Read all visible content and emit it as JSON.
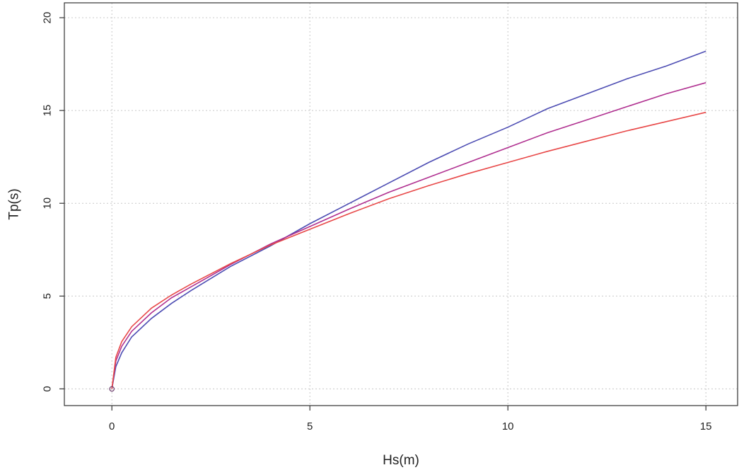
{
  "chart_data": {
    "type": "line",
    "title": "",
    "xlabel": "Hs(m)",
    "ylabel": "Tp(s)",
    "xlim": [
      -1.2,
      15.8
    ],
    "ylim": [
      -0.9,
      20.8
    ],
    "xticks": [
      0,
      5,
      10,
      15
    ],
    "xtick_labels": [
      "0",
      "5",
      "10",
      "15"
    ],
    "yticks": [
      0,
      5,
      10,
      15,
      20
    ],
    "ytick_labels": [
      "0",
      "5",
      "10",
      "15",
      "20"
    ],
    "grid": true,
    "series": [
      {
        "color": "#4d4db3",
        "x": [
          0,
          0.1,
          0.25,
          0.5,
          1,
          1.5,
          2,
          3,
          4,
          5,
          6,
          7,
          8,
          9,
          10,
          11,
          12,
          13,
          14,
          15
        ],
        "y": [
          0,
          1.2,
          1.95,
          2.8,
          3.8,
          4.6,
          5.3,
          6.6,
          7.7,
          8.9,
          10.0,
          11.1,
          12.2,
          13.2,
          14.1,
          15.1,
          15.9,
          16.7,
          17.4,
          18.2
        ]
      },
      {
        "color": "#b03090",
        "x": [
          0,
          0.1,
          0.25,
          0.5,
          1,
          1.5,
          2,
          3,
          4,
          5,
          6,
          7,
          8,
          9,
          10,
          11,
          12,
          13,
          14,
          15
        ],
        "y": [
          0,
          1.5,
          2.3,
          3.1,
          4.1,
          4.9,
          5.5,
          6.7,
          7.8,
          8.75,
          9.7,
          10.6,
          11.4,
          12.2,
          13.0,
          13.8,
          14.5,
          15.2,
          15.9,
          16.5
        ]
      },
      {
        "color": "#e84848",
        "x": [
          0,
          0.1,
          0.25,
          0.5,
          1,
          1.5,
          2,
          3,
          4,
          5,
          6,
          7,
          8,
          9,
          10,
          11,
          12,
          13,
          14,
          15
        ],
        "y": [
          0,
          1.7,
          2.55,
          3.35,
          4.35,
          5.05,
          5.65,
          6.75,
          7.75,
          8.6,
          9.45,
          10.25,
          10.95,
          11.6,
          12.2,
          12.8,
          13.35,
          13.9,
          14.4,
          14.9
        ]
      }
    ]
  }
}
